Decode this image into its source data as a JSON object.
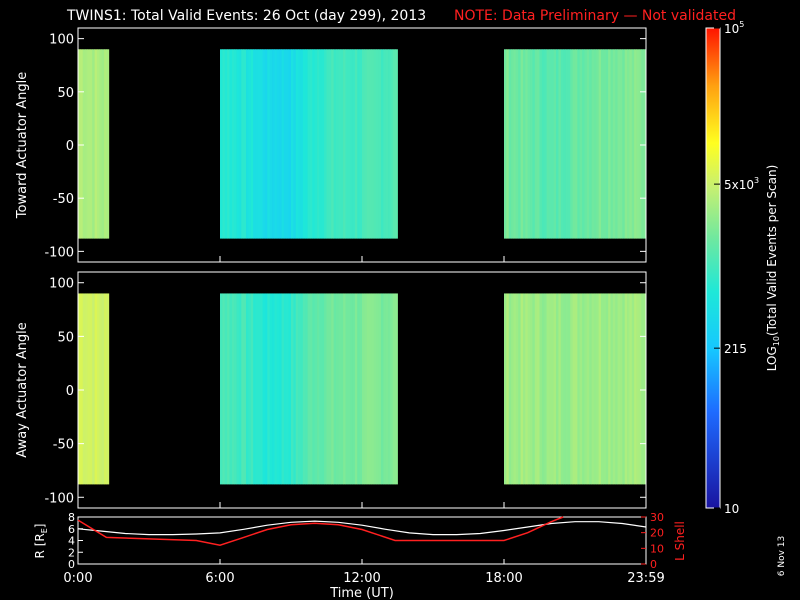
{
  "header": {
    "title": "TWINS1: Total Valid Events: 26 Oct (day 299), 2013",
    "note": "NOTE: Data Preliminary — Not validated",
    "title_color": "#ffffff",
    "note_color": "#ff2020"
  },
  "side_stamp": "6 Nov 13",
  "chart_data": [
    {
      "type": "heatmap",
      "panel": "toward",
      "ylabel": "Toward Actuator Angle",
      "ylim": [
        -110,
        110
      ],
      "yticks": [
        100,
        50,
        0,
        -50,
        -100
      ],
      "xlim": [
        0,
        24
      ],
      "xticks": [
        "0:00",
        "6:00",
        "12:00",
        "18:00",
        "23:59"
      ],
      "angle_range": [
        -88,
        90
      ],
      "data_intervals": [
        [
          0,
          1.3
        ],
        [
          6,
          13.5
        ],
        [
          18,
          24
        ]
      ],
      "description_log_counts_by_hour": [
        [
          0,
          3.6
        ],
        [
          1.3,
          3.5
        ],
        [
          6,
          2.9
        ],
        [
          7,
          2.8
        ],
        [
          8,
          2.6
        ],
        [
          9,
          2.6
        ],
        [
          10,
          2.9
        ],
        [
          11,
          3.0
        ],
        [
          12,
          3.0
        ],
        [
          13.5,
          3.1
        ],
        [
          18,
          3.3
        ],
        [
          20,
          3.1
        ],
        [
          22,
          3.3
        ],
        [
          24,
          3.35
        ]
      ]
    },
    {
      "type": "heatmap",
      "panel": "away",
      "ylabel": "Away Actuator Angle",
      "ylim": [
        -110,
        110
      ],
      "yticks": [
        100,
        50,
        0,
        -50,
        -100
      ],
      "xlim": [
        0,
        24
      ],
      "xticks": [
        "0:00",
        "6:00",
        "12:00",
        "18:00",
        "23:59"
      ],
      "angle_range": [
        -88,
        90
      ],
      "data_intervals": [
        [
          0,
          1.3
        ],
        [
          6,
          13.5
        ],
        [
          18,
          24
        ]
      ],
      "description_log_counts_by_hour": [
        [
          0,
          3.8
        ],
        [
          1.3,
          3.7
        ],
        [
          6,
          3.1
        ],
        [
          7,
          3.0
        ],
        [
          8,
          2.8
        ],
        [
          9,
          2.9
        ],
        [
          10,
          3.2
        ],
        [
          11,
          3.25
        ],
        [
          12,
          3.3
        ],
        [
          13.5,
          3.35
        ],
        [
          18,
          3.5
        ],
        [
          20,
          3.45
        ],
        [
          22,
          3.5
        ],
        [
          24,
          3.5
        ]
      ]
    },
    {
      "type": "line",
      "panel": "orbit",
      "xlabel": "Time (UT)",
      "ylabel": "R [R",
      "ylabel_sub": "E",
      "ylabel_end": "]",
      "ylim": [
        0,
        8
      ],
      "yticks": [
        0,
        2,
        4,
        6,
        8
      ],
      "y2label": "L Shell",
      "y2lim": [
        0,
        30
      ],
      "y2ticks": [
        0,
        10,
        20,
        30
      ],
      "xlim": [
        0,
        24
      ],
      "xticks": [
        "0:00",
        "6:00",
        "12:00",
        "18:00",
        "23:59"
      ],
      "series": [
        {
          "color": "#ffffff",
          "axis": "left",
          "x": [
            0,
            1,
            2,
            3,
            4,
            5,
            6,
            7,
            8,
            9,
            10,
            11,
            12,
            13,
            14,
            15,
            16,
            17,
            18,
            19,
            20,
            21,
            22,
            23,
            24
          ],
          "y": [
            6.0,
            5.6,
            5.2,
            5.0,
            5.0,
            5.1,
            5.3,
            5.9,
            6.6,
            7.1,
            7.3,
            7.1,
            6.6,
            5.9,
            5.3,
            5.0,
            5.0,
            5.2,
            5.7,
            6.3,
            6.9,
            7.2,
            7.2,
            6.9,
            6.3
          ]
        },
        {
          "color": "#ff2020",
          "axis": "right",
          "x": [
            0,
            1.2,
            3,
            5,
            6,
            7,
            8,
            9,
            10,
            11,
            12,
            13.4,
            15,
            17,
            18,
            19,
            20,
            20.5
          ],
          "y": [
            28,
            17,
            16,
            15,
            12,
            17,
            22,
            25,
            26,
            25,
            22,
            15,
            15,
            15,
            15,
            20,
            27,
            30
          ]
        }
      ]
    }
  ],
  "colorbar": {
    "label": "LOG",
    "label_sub": "10",
    "label_end": "(Total Valid Events per Scan)",
    "range_log": [
      1,
      5
    ],
    "tick_labels": [
      {
        "value": 5,
        "text": "10",
        "sup": "5"
      },
      {
        "value": 3.699,
        "text": "5x10",
        "sup": "3"
      },
      {
        "value": 2.332,
        "text": "215",
        "sup": ""
      },
      {
        "value": 1,
        "text": "10",
        "sup": ""
      }
    ]
  }
}
